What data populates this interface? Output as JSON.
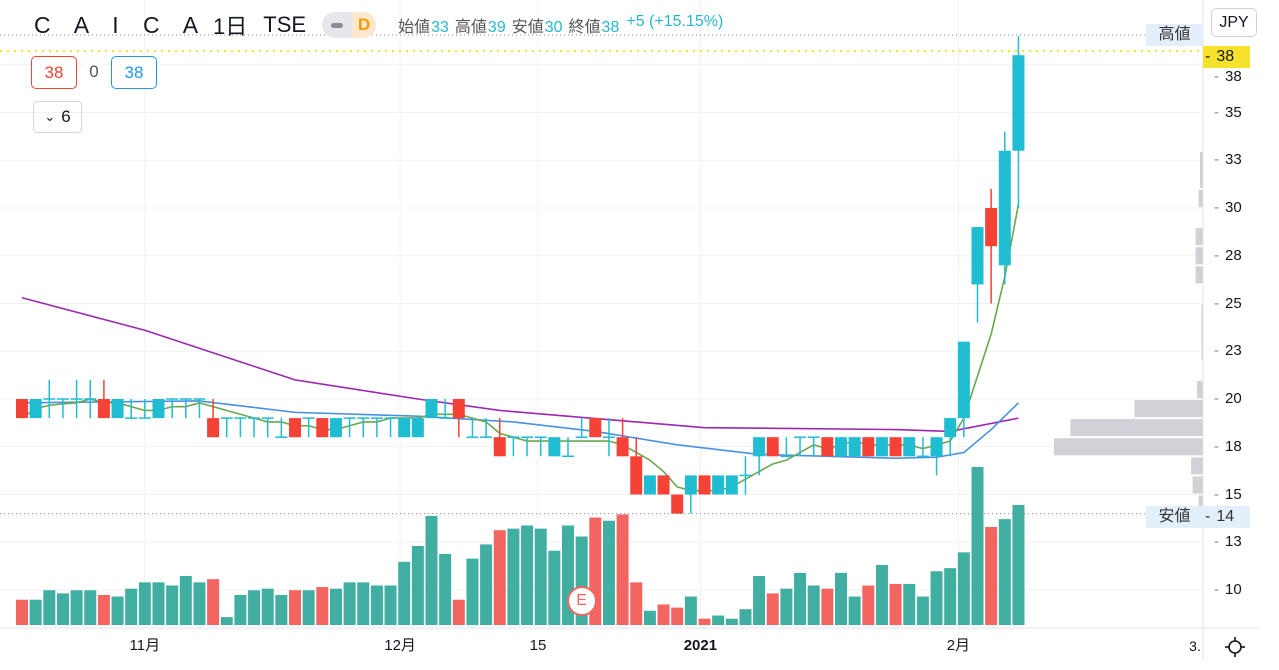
{
  "header": {
    "symbol": "C A I C A",
    "timeframe": "1日",
    "exchange": "TSE",
    "market_status_letter": "D",
    "ohlc": [
      {
        "label": "始値",
        "value": "33"
      },
      {
        "label": "高値",
        "value": "39"
      },
      {
        "label": "安値",
        "value": "30"
      },
      {
        "label": "終値",
        "value": "38"
      }
    ],
    "change": "+5 (+15.15%)"
  },
  "trade_boxes": {
    "sell": "38",
    "spread": "0",
    "buy": "38"
  },
  "indicators_toggle": {
    "count": "6"
  },
  "currency_button": "JPY",
  "price_axis": {
    "ticks": [
      {
        "value": 37.5,
        "label": "38"
      },
      {
        "value": 35,
        "label": "35"
      },
      {
        "value": 32.5,
        "label": "33"
      },
      {
        "value": 30,
        "label": "30"
      },
      {
        "value": 27.5,
        "label": "28"
      },
      {
        "value": 25,
        "label": "25"
      },
      {
        "value": 22.5,
        "label": "23"
      },
      {
        "value": 20,
        "label": "20"
      },
      {
        "value": 17.5,
        "label": "18"
      },
      {
        "value": 15,
        "label": "15"
      },
      {
        "value": 12.5,
        "label": "13"
      },
      {
        "value": 10,
        "label": "10"
      }
    ],
    "last_price": "38",
    "high_label": "高値",
    "high_value": 39,
    "low_label": "安値",
    "low_value": "14"
  },
  "time_axis": {
    "labels": [
      {
        "bar": 9,
        "label": "11月",
        "bold": false
      },
      {
        "bar": 27.7,
        "label": "12月",
        "bold": false
      },
      {
        "bar": 37.8,
        "label": "15",
        "bold": false
      },
      {
        "bar": 49.7,
        "label": "2021",
        "bold": true
      },
      {
        "bar": 68.6,
        "label": "2月",
        "bold": false
      }
    ],
    "cut_label": "3."
  },
  "earnings_marker": {
    "bar": 41,
    "letter": "E"
  },
  "colors": {
    "up": "#1fbcd2",
    "down": "#f44336",
    "vol_up": "#40afa2",
    "vol_down": "#f26560",
    "ma_fast": "#6aa84f",
    "ma_mid": "#4a90e2",
    "ma_slow": "#9c27b0",
    "last_price": "#f7e22b"
  },
  "chart_data": {
    "type": "candlestick",
    "ohlc_order": [
      "open",
      "high",
      "low",
      "close"
    ],
    "candles": [
      [
        20,
        20,
        19,
        19
      ],
      [
        19,
        20,
        19,
        20
      ],
      [
        20,
        21,
        19,
        20
      ],
      [
        20,
        20,
        19,
        20
      ],
      [
        20,
        21,
        19,
        20
      ],
      [
        20,
        21,
        19,
        20
      ],
      [
        20,
        21,
        19,
        19
      ],
      [
        19,
        20,
        19,
        20
      ],
      [
        19,
        20,
        19,
        19
      ],
      [
        19,
        20,
        19,
        19
      ],
      [
        19,
        20,
        19,
        20
      ],
      [
        20,
        20,
        19,
        20
      ],
      [
        20,
        20,
        19,
        20
      ],
      [
        20,
        20,
        19,
        20
      ],
      [
        19,
        20,
        18,
        18
      ],
      [
        19,
        19,
        18,
        19
      ],
      [
        19,
        19,
        18,
        19
      ],
      [
        19,
        19,
        18,
        19
      ],
      [
        19,
        19,
        18,
        19
      ],
      [
        18,
        19,
        18,
        18
      ],
      [
        19,
        19,
        18,
        18
      ],
      [
        19,
        19,
        18,
        19
      ],
      [
        19,
        19,
        18,
        18
      ],
      [
        18,
        19,
        18,
        19
      ],
      [
        19,
        19,
        18,
        19
      ],
      [
        19,
        19,
        18,
        19
      ],
      [
        19,
        19,
        18,
        19
      ],
      [
        19,
        19,
        18,
        19
      ],
      [
        18,
        19,
        18,
        19
      ],
      [
        18,
        19,
        18,
        19
      ],
      [
        19,
        20,
        19,
        20
      ],
      [
        19,
        20,
        19,
        19
      ],
      [
        20,
        20,
        18,
        19
      ],
      [
        18,
        19,
        18,
        18
      ],
      [
        18,
        19,
        18,
        18
      ],
      [
        18,
        19,
        17,
        17
      ],
      [
        18,
        18,
        17,
        18
      ],
      [
        18,
        18,
        17,
        18
      ],
      [
        18,
        18,
        17,
        18
      ],
      [
        17,
        18,
        17,
        18
      ],
      [
        17,
        18,
        17,
        17
      ],
      [
        18,
        19,
        18,
        18
      ],
      [
        19,
        19,
        18,
        18
      ],
      [
        18,
        19,
        17,
        18
      ],
      [
        18,
        19,
        17,
        17
      ],
      [
        17,
        18,
        15,
        15
      ],
      [
        15,
        16,
        15,
        16
      ],
      [
        16,
        16,
        15,
        15
      ],
      [
        15,
        15,
        14,
        14
      ],
      [
        15,
        16,
        14,
        16
      ],
      [
        16,
        16,
        15,
        15
      ],
      [
        15,
        16,
        15,
        16
      ],
      [
        15,
        16,
        15,
        16
      ],
      [
        16,
        17,
        15,
        16
      ],
      [
        17,
        18,
        16,
        18
      ],
      [
        18,
        18,
        17,
        17
      ],
      [
        17,
        18,
        17,
        17
      ],
      [
        18,
        18,
        17,
        18
      ],
      [
        18,
        18,
        17,
        18
      ],
      [
        18,
        18,
        17,
        17
      ],
      [
        17,
        18,
        17,
        18
      ],
      [
        17,
        18,
        17,
        18
      ],
      [
        18,
        18,
        17,
        17
      ],
      [
        17,
        18,
        17,
        18
      ],
      [
        18,
        18,
        17,
        17
      ],
      [
        17,
        18,
        17,
        18
      ],
      [
        17,
        18,
        17,
        17
      ],
      [
        17,
        18,
        16,
        18
      ],
      [
        18,
        19,
        17,
        19
      ],
      [
        19,
        23,
        18,
        23
      ],
      [
        26,
        29,
        24,
        29
      ],
      [
        30,
        31,
        25,
        28
      ],
      [
        27,
        34,
        26,
        33
      ],
      [
        33,
        39,
        30,
        38
      ]
    ],
    "volume_relative_pct": [
      16,
      16,
      22,
      20,
      22,
      22,
      19,
      18,
      23,
      27,
      27,
      25,
      31,
      27,
      29,
      5,
      19,
      22,
      23,
      19,
      22,
      22,
      24,
      23,
      27,
      27,
      25,
      25,
      40,
      50,
      69,
      45,
      16,
      42,
      51,
      60,
      61,
      63,
      61,
      47,
      63,
      56,
      68,
      66,
      70,
      27,
      9,
      13,
      11,
      18,
      4,
      6,
      4,
      10,
      31,
      20,
      23,
      33,
      25,
      23,
      33,
      18,
      25,
      38,
      26,
      26,
      18,
      34,
      36,
      46,
      100,
      62,
      67,
      76
    ],
    "ma_mid": [
      [
        0,
        19.8
      ],
      [
        13,
        19.9
      ],
      [
        20,
        19.3
      ],
      [
        29,
        19.1
      ],
      [
        36,
        18.8
      ],
      [
        42,
        18.3
      ],
      [
        48,
        17.6
      ],
      [
        54,
        17.1
      ],
      [
        64,
        16.9
      ],
      [
        67,
        16.95
      ],
      [
        69,
        17.2
      ],
      [
        71,
        18.4
      ],
      [
        73,
        19.8
      ]
    ],
    "ma_slow": [
      [
        0,
        25.3
      ],
      [
        9,
        23.6
      ],
      [
        20,
        21
      ],
      [
        29,
        20
      ],
      [
        35,
        19.4
      ],
      [
        50,
        18.5
      ],
      [
        64,
        18.4
      ],
      [
        68,
        18.3
      ],
      [
        73,
        19
      ]
    ],
    "ma_fast_period": 5,
    "volume_profile_pct": [
      {
        "from": 20,
        "to": 21,
        "pct": 4
      },
      {
        "from": 19,
        "to": 20,
        "pct": 46
      },
      {
        "from": 18,
        "to": 19,
        "pct": 89
      },
      {
        "from": 17,
        "to": 18,
        "pct": 100
      },
      {
        "from": 16,
        "to": 17,
        "pct": 8
      },
      {
        "from": 15,
        "to": 16,
        "pct": 7
      },
      {
        "from": 14,
        "to": 15,
        "pct": 3
      },
      {
        "from": 26,
        "to": 27,
        "pct": 5
      },
      {
        "from": 27,
        "to": 28,
        "pct": 5
      },
      {
        "from": 28,
        "to": 29,
        "pct": 5
      },
      {
        "from": 30,
        "to": 31,
        "pct": 3
      },
      {
        "from": 31,
        "to": 33,
        "pct": 2
      },
      {
        "from": 22,
        "to": 25,
        "pct": 1
      }
    ]
  }
}
